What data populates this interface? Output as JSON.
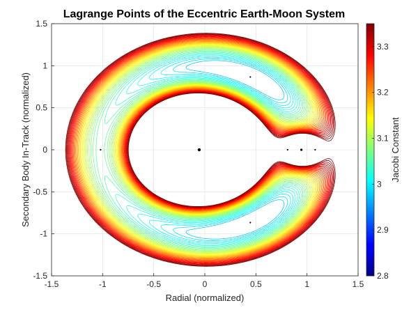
{
  "chart_data": {
    "type": "contour",
    "title": "Lagrange Points of the Eccentric Earth-Moon System",
    "xlabel": "Radial (normalized)",
    "ylabel": "Secondary Body In-Track (normalized)",
    "xlim": [
      -1.5,
      1.5
    ],
    "ylim": [
      -1.5,
      1.5
    ],
    "xticks": [
      "-1.5",
      "-1",
      "-0.5",
      "0",
      "0.5",
      "1",
      "1.5"
    ],
    "yticks": [
      "-1.5",
      "-1",
      "-0.5",
      "0",
      "0.5",
      "1",
      "1.5"
    ],
    "grid": true,
    "mu": 0.0549,
    "colorbar": {
      "label": "Jacobi Constant",
      "range": [
        2.8,
        3.35
      ],
      "ticks": [
        "2.8",
        "2.9",
        "3",
        "3.1",
        "3.2",
        "3.3"
      ],
      "colormap": "jet"
    },
    "contour_levels": {
      "min": 2.98,
      "max": 3.35,
      "count": 38
    },
    "points": [
      {
        "name": "primary",
        "x": -0.0549,
        "y": 0
      },
      {
        "name": "secondary",
        "x": 0.9451,
        "y": 0
      },
      {
        "name": "L1",
        "x": 0.81,
        "y": 0
      },
      {
        "name": "L2",
        "x": 1.08,
        "y": 0
      },
      {
        "name": "L3",
        "x": -1.02,
        "y": 0
      },
      {
        "name": "L4",
        "x": 0.4451,
        "y": 0.866
      },
      {
        "name": "L5",
        "x": 0.4451,
        "y": -0.866
      }
    ]
  }
}
